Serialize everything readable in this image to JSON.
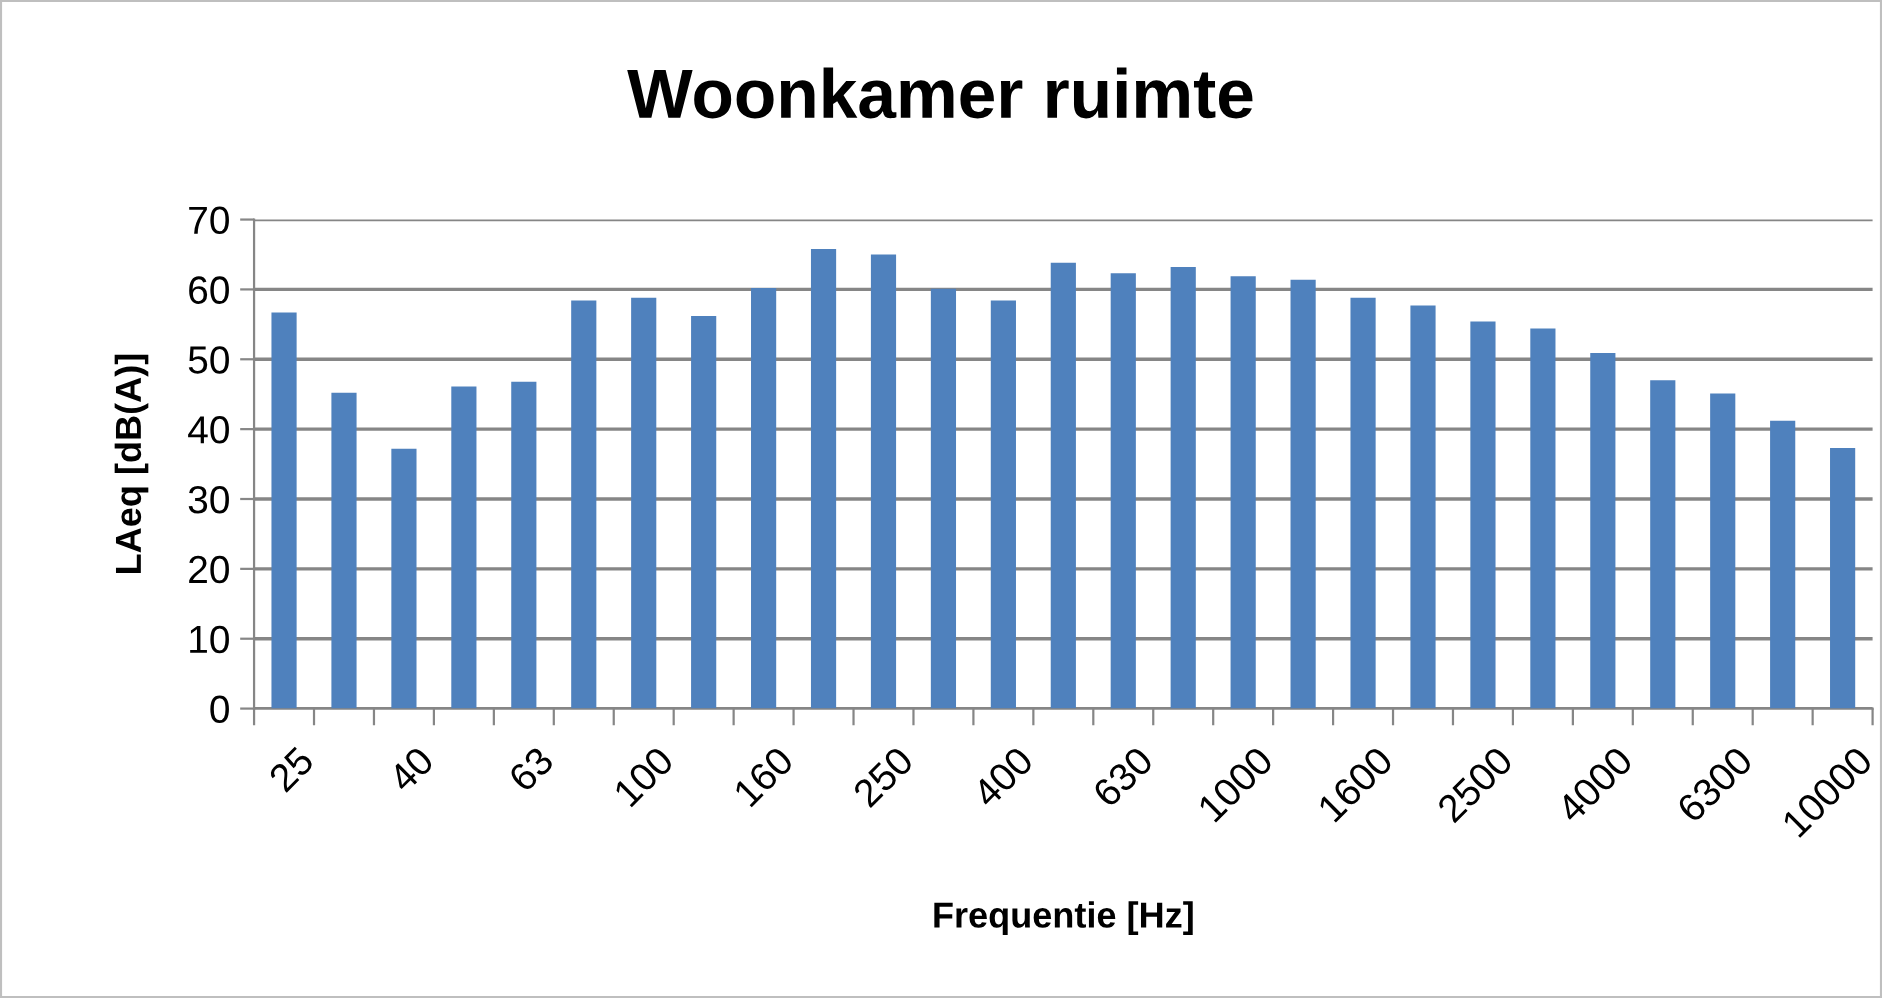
{
  "chart_data": {
    "type": "bar",
    "title": "Woonkamer ruimte",
    "xlabel": "Frequentie [Hz]",
    "ylabel": "LAeq [dB(A)]",
    "categories": [
      "25",
      null,
      "40",
      null,
      "63",
      null,
      "100",
      null,
      "160",
      null,
      "250",
      null,
      "400",
      null,
      "630",
      null,
      "1000",
      null,
      "1600",
      null,
      "2500",
      null,
      "4000",
      null,
      "6300",
      null,
      "10000"
    ],
    "values": [
      56.7,
      45.2,
      37.2,
      46.1,
      46.8,
      58.4,
      58.8,
      56.2,
      60.2,
      65.8,
      65.0,
      60.1,
      58.4,
      63.8,
      62.3,
      63.2,
      61.9,
      61.4,
      58.8,
      57.7,
      55.4,
      54.4,
      50.9,
      47.0,
      45.1,
      41.2,
      37.3
    ],
    "color": "#4f81bd",
    "ylim": [
      0,
      70
    ],
    "yticks": [
      0,
      10,
      20,
      30,
      40,
      50,
      60,
      70
    ],
    "grid": "y",
    "legend": false
  }
}
